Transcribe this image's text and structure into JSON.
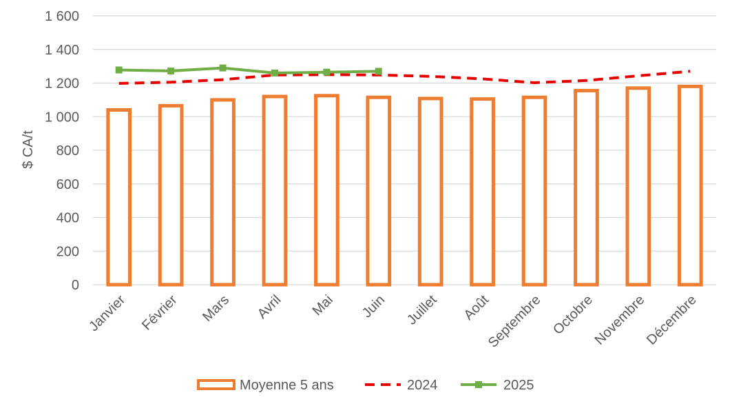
{
  "chart_data": {
    "type": "bar",
    "title": "",
    "xlabel": "",
    "ylabel": "$ CA/t",
    "ylim": [
      0,
      1600
    ],
    "yticks": [
      0,
      200,
      400,
      600,
      800,
      1000,
      1200,
      1400,
      1600
    ],
    "ytick_labels": [
      "0",
      "200",
      "400",
      "600",
      "800",
      "1 000",
      "1 200",
      "1 400",
      "1 600"
    ],
    "grid": true,
    "legend_position": "bottom",
    "categories": [
      "Janvier",
      "Février",
      "Mars",
      "Avril",
      "Mai",
      "Juin",
      "Juillet",
      "Août",
      "Septembre",
      "Octobre",
      "Novembre",
      "Décembre"
    ],
    "series": [
      {
        "name": "Moyenne 5 ans",
        "type": "bar",
        "style": "hollow",
        "color": "#ED7D31",
        "values": [
          1040,
          1065,
          1100,
          1120,
          1125,
          1115,
          1108,
          1105,
          1115,
          1155,
          1170,
          1180
        ]
      },
      {
        "name": "2024",
        "type": "line",
        "style": "dashed",
        "color": "#E60000",
        "values": [
          1198,
          1205,
          1220,
          1248,
          1250,
          1248,
          1240,
          1225,
          1202,
          1215,
          1243,
          1270
        ]
      },
      {
        "name": "2025",
        "type": "line",
        "style": "solid-square-markers",
        "color": "#70AD47",
        "values": [
          1278,
          1272,
          1290,
          1260,
          1265,
          1270,
          null,
          null,
          null,
          null,
          null,
          null
        ]
      }
    ]
  }
}
